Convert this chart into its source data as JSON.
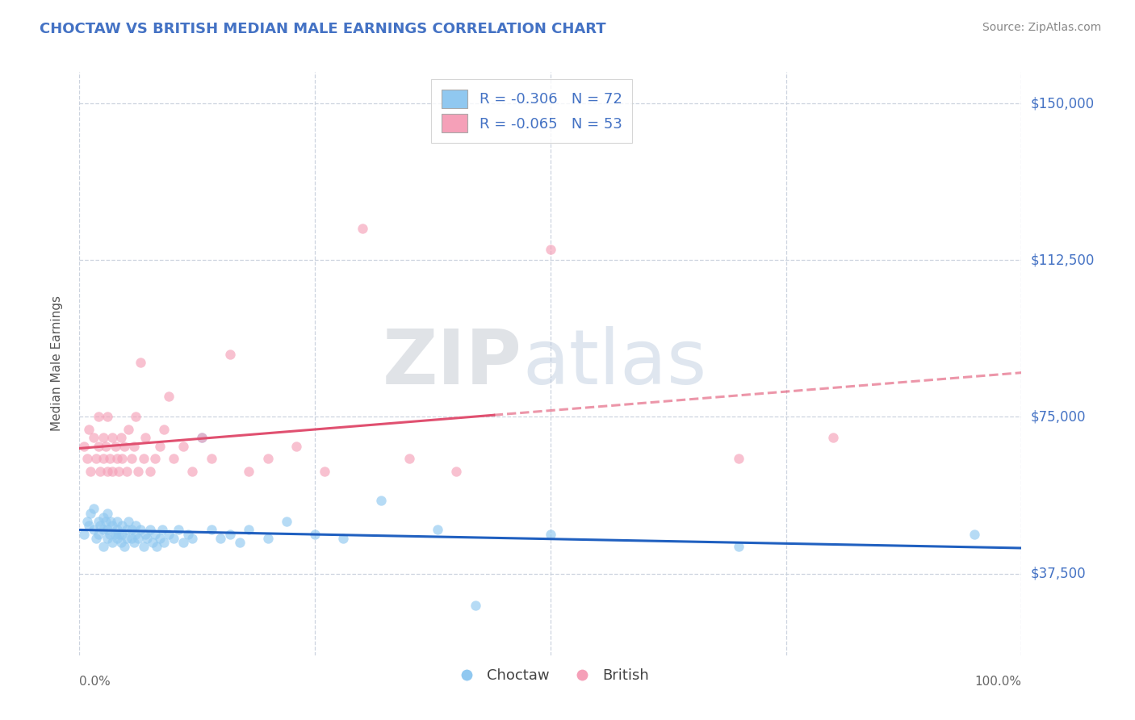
{
  "title": "CHOCTAW VS BRITISH MEDIAN MALE EARNINGS CORRELATION CHART",
  "source_text": "Source: ZipAtlas.com",
  "ylabel": "Median Male Earnings",
  "x_min": 0.0,
  "x_max": 1.0,
  "y_min": 18000,
  "y_max": 157500,
  "yticks": [
    37500,
    75000,
    112500,
    150000
  ],
  "ytick_labels": [
    "$37,500",
    "$75,000",
    "$112,500",
    "$150,000"
  ],
  "choctaw_color": "#90C8F0",
  "british_color": "#F5A0B8",
  "choctaw_line_color": "#2060C0",
  "british_line_color": "#E05070",
  "background_color": "#FFFFFF",
  "grid_color": "#C8D0DC",
  "legend_R1": "R = -0.306",
  "legend_N1": "N = 72",
  "legend_R2": "R = -0.065",
  "legend_N2": "N = 53",
  "label1": "Choctaw",
  "label2": "British",
  "title_color": "#4472C4",
  "axis_label_color": "#555555",
  "ytick_color": "#4472C4",
  "xtick_color": "#666666",
  "watermark_zip": "ZIP",
  "watermark_atlas": "atlas",
  "choctaw_x": [
    0.005,
    0.008,
    0.01,
    0.012,
    0.015,
    0.015,
    0.018,
    0.02,
    0.02,
    0.022,
    0.025,
    0.025,
    0.025,
    0.028,
    0.03,
    0.03,
    0.03,
    0.032,
    0.033,
    0.035,
    0.035,
    0.038,
    0.04,
    0.04,
    0.04,
    0.042,
    0.044,
    0.045,
    0.045,
    0.048,
    0.05,
    0.05,
    0.052,
    0.055,
    0.055,
    0.058,
    0.06,
    0.06,
    0.062,
    0.065,
    0.068,
    0.07,
    0.072,
    0.075,
    0.078,
    0.08,
    0.082,
    0.085,
    0.088,
    0.09,
    0.095,
    0.1,
    0.105,
    0.11,
    0.115,
    0.12,
    0.13,
    0.14,
    0.15,
    0.16,
    0.17,
    0.18,
    0.2,
    0.22,
    0.25,
    0.28,
    0.32,
    0.38,
    0.42,
    0.5,
    0.7,
    0.95
  ],
  "choctaw_y": [
    47000,
    50000,
    49000,
    52000,
    48000,
    53000,
    46000,
    50000,
    47000,
    49000,
    51000,
    48000,
    44000,
    50000,
    48000,
    46000,
    52000,
    47000,
    50000,
    45000,
    49000,
    47000,
    48000,
    46000,
    50000,
    47000,
    45000,
    49000,
    47000,
    44000,
    48000,
    46000,
    50000,
    46000,
    48000,
    45000,
    47000,
    49000,
    46000,
    48000,
    44000,
    47000,
    46000,
    48000,
    45000,
    47000,
    44000,
    46000,
    48000,
    45000,
    47000,
    46000,
    48000,
    45000,
    47000,
    46000,
    70000,
    48000,
    46000,
    47000,
    45000,
    48000,
    46000,
    50000,
    47000,
    46000,
    55000,
    48000,
    30000,
    47000,
    44000,
    47000
  ],
  "british_x": [
    0.005,
    0.008,
    0.01,
    0.012,
    0.015,
    0.018,
    0.02,
    0.02,
    0.022,
    0.025,
    0.025,
    0.028,
    0.03,
    0.03,
    0.032,
    0.035,
    0.035,
    0.038,
    0.04,
    0.042,
    0.044,
    0.045,
    0.048,
    0.05,
    0.052,
    0.055,
    0.058,
    0.06,
    0.062,
    0.065,
    0.068,
    0.07,
    0.075,
    0.08,
    0.085,
    0.09,
    0.095,
    0.1,
    0.11,
    0.12,
    0.13,
    0.14,
    0.16,
    0.18,
    0.2,
    0.23,
    0.26,
    0.3,
    0.35,
    0.4,
    0.5,
    0.7,
    0.8
  ],
  "british_y": [
    68000,
    65000,
    72000,
    62000,
    70000,
    65000,
    68000,
    75000,
    62000,
    65000,
    70000,
    68000,
    62000,
    75000,
    65000,
    70000,
    62000,
    68000,
    65000,
    62000,
    70000,
    65000,
    68000,
    62000,
    72000,
    65000,
    68000,
    75000,
    62000,
    88000,
    65000,
    70000,
    62000,
    65000,
    68000,
    72000,
    80000,
    65000,
    68000,
    62000,
    70000,
    65000,
    90000,
    62000,
    65000,
    68000,
    62000,
    120000,
    65000,
    62000,
    115000,
    65000,
    70000
  ]
}
